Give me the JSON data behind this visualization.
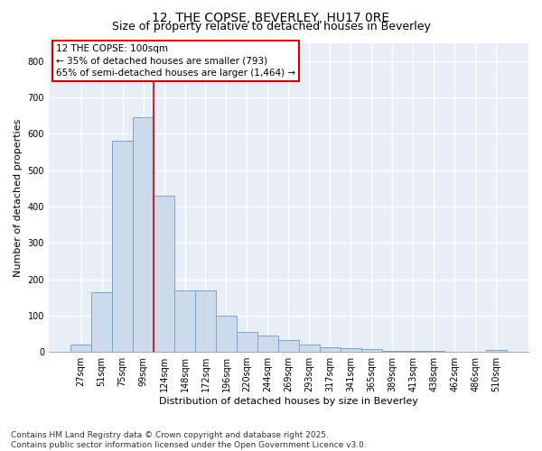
{
  "title": "12, THE COPSE, BEVERLEY, HU17 0RE",
  "subtitle": "Size of property relative to detached houses in Beverley",
  "xlabel": "Distribution of detached houses by size in Beverley",
  "ylabel": "Number of detached properties",
  "categories": [
    "27sqm",
    "51sqm",
    "75sqm",
    "99sqm",
    "124sqm",
    "148sqm",
    "172sqm",
    "196sqm",
    "220sqm",
    "244sqm",
    "269sqm",
    "293sqm",
    "317sqm",
    "341sqm",
    "365sqm",
    "389sqm",
    "413sqm",
    "438sqm",
    "462sqm",
    "486sqm",
    "510sqm"
  ],
  "values": [
    20,
    165,
    580,
    645,
    430,
    170,
    170,
    100,
    55,
    45,
    33,
    20,
    12,
    10,
    8,
    4,
    2,
    2,
    1,
    1,
    5
  ],
  "bar_color": "#cddaeb",
  "bar_edge_color": "#7aa3cc",
  "background_color": "#e8eef7",
  "annotation_box_text": "12 THE COPSE: 100sqm\n← 35% of detached houses are smaller (793)\n65% of semi-detached houses are larger (1,464) →",
  "vline_x": 3.5,
  "vline_color": "#cc0000",
  "ylim": [
    0,
    850
  ],
  "yticks": [
    0,
    100,
    200,
    300,
    400,
    500,
    600,
    700,
    800
  ],
  "footer_line1": "Contains HM Land Registry data © Crown copyright and database right 2025.",
  "footer_line2": "Contains public sector information licensed under the Open Government Licence v3.0.",
  "title_fontsize": 10,
  "subtitle_fontsize": 9,
  "axis_label_fontsize": 8,
  "tick_fontsize": 7,
  "annotation_fontsize": 7.5,
  "footer_fontsize": 6.5
}
